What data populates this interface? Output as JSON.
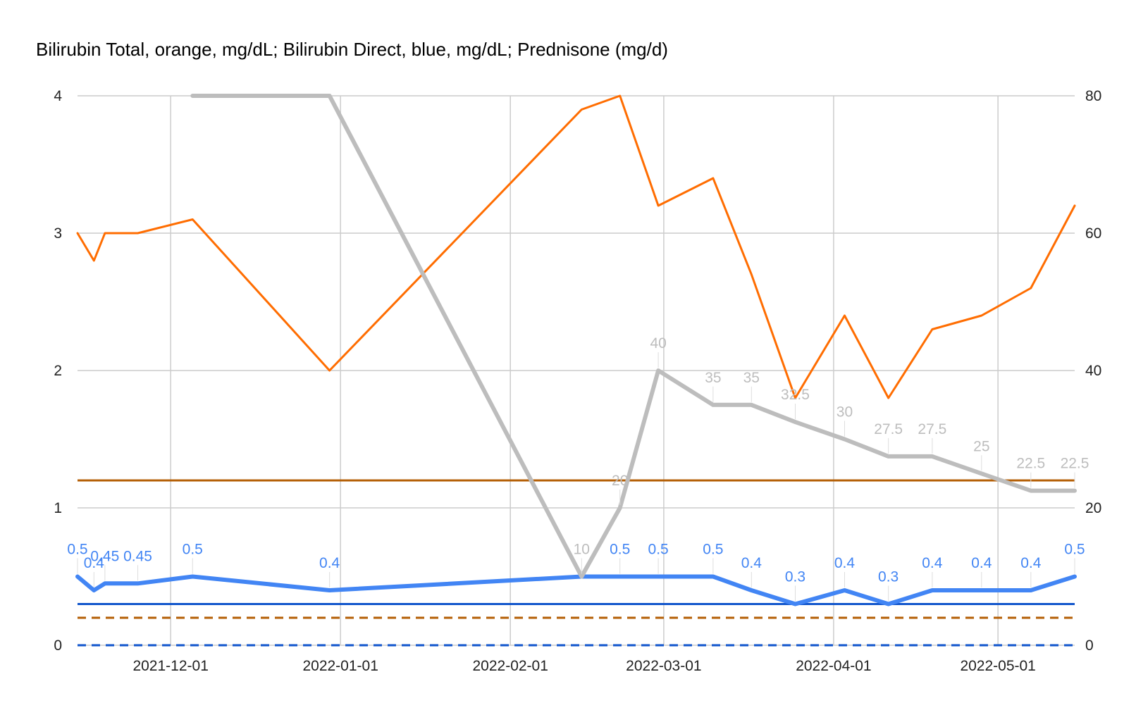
{
  "chart_data": {
    "type": "line",
    "title": "Bilirubin Total, orange, mg/dL; Bilirubin Direct, blue, mg/dL; Prednisone (mg/d)",
    "x_ticks": [
      "2021-12-01",
      "2022-01-01",
      "2022-02-01",
      "2022-03-01",
      "2022-04-01",
      "2022-05-01"
    ],
    "x_range": [
      "2021-11-14",
      "2022-05-15"
    ],
    "ylim_left": [
      0,
      4
    ],
    "yticks_left": [
      "0",
      "1",
      "2",
      "3",
      "4"
    ],
    "ylim_right": [
      0,
      80
    ],
    "yticks_right": [
      "0",
      "20",
      "40",
      "60",
      "80"
    ],
    "grid": true,
    "series": [
      {
        "key": "total",
        "color": "#ff6d01",
        "axis": "left",
        "points": [
          [
            "2021-11-14",
            3.0
          ],
          [
            "2021-11-17",
            2.8
          ],
          [
            "2021-11-19",
            3.0
          ],
          [
            "2021-11-25",
            3.0
          ],
          [
            "2021-12-05",
            3.1
          ],
          [
            "2021-12-30",
            2.0
          ],
          [
            "2022-02-14",
            3.9
          ],
          [
            "2022-02-21",
            4.0
          ],
          [
            "2022-02-28",
            3.2
          ],
          [
            "2022-03-10",
            3.4
          ],
          [
            "2022-03-17",
            2.7
          ],
          [
            "2022-03-25",
            1.8
          ],
          [
            "2022-04-03",
            2.4
          ],
          [
            "2022-04-11",
            1.8
          ],
          [
            "2022-04-19",
            2.3
          ],
          [
            "2022-04-28",
            2.4
          ],
          [
            "2022-05-07",
            2.6
          ],
          [
            "2022-05-15",
            3.2
          ]
        ]
      },
      {
        "key": "direct",
        "color": "#4285f4",
        "axis": "left",
        "points": [
          [
            "2021-11-14",
            0.5
          ],
          [
            "2021-11-17",
            0.4
          ],
          [
            "2021-11-19",
            0.45
          ],
          [
            "2021-11-25",
            0.45
          ],
          [
            "2021-12-05",
            0.5
          ],
          [
            "2021-12-30",
            0.4
          ],
          [
            "2022-02-14",
            0.5
          ],
          [
            "2022-02-21",
            0.5
          ],
          [
            "2022-02-28",
            0.5
          ],
          [
            "2022-03-10",
            0.5
          ],
          [
            "2022-03-17",
            0.4
          ],
          [
            "2022-03-25",
            0.3
          ],
          [
            "2022-04-03",
            0.4
          ],
          [
            "2022-04-11",
            0.3
          ],
          [
            "2022-04-19",
            0.4
          ],
          [
            "2022-04-28",
            0.4
          ],
          [
            "2022-05-07",
            0.4
          ],
          [
            "2022-05-15",
            0.5
          ]
        ],
        "labels": [
          "0.5",
          "0.4",
          "0.45",
          "0.45",
          "0.5",
          "0.4",
          "",
          "0.5",
          "0.5",
          "0.5",
          "0.4",
          "0.3",
          "0.4",
          "0.3",
          "0.4",
          "0.4",
          "0.4",
          "0.5"
        ]
      },
      {
        "key": "prednisone",
        "color": "#bdbdbd",
        "axis": "right",
        "points": [
          [
            "2021-12-05",
            80
          ],
          [
            "2021-12-30",
            80
          ],
          [
            "2022-02-14",
            10
          ],
          [
            "2022-02-21",
            20
          ],
          [
            "2022-02-28",
            40
          ],
          [
            "2022-03-10",
            35
          ],
          [
            "2022-03-17",
            35
          ],
          [
            "2022-03-25",
            32.5
          ],
          [
            "2022-04-03",
            30
          ],
          [
            "2022-04-11",
            27.5
          ],
          [
            "2022-04-19",
            27.5
          ],
          [
            "2022-04-28",
            25
          ],
          [
            "2022-05-07",
            22.5
          ],
          [
            "2022-05-15",
            22.5
          ]
        ],
        "labels": [
          "",
          "",
          "10",
          "20",
          "40",
          "35",
          "35",
          "32.5",
          "30",
          "27.5",
          "27.5",
          "25",
          "22.5",
          "22.5"
        ]
      }
    ],
    "reference_lines": [
      {
        "value": 1.2,
        "color": "#b45f06",
        "style": "solid",
        "axis": "left"
      },
      {
        "value": 0.3,
        "color": "#1155cc",
        "style": "solid",
        "axis": "left"
      },
      {
        "value": 0.2,
        "color": "#b45f06",
        "style": "dashed",
        "axis": "left"
      },
      {
        "value": 0.0,
        "color": "#1155cc",
        "style": "dashed",
        "axis": "left"
      }
    ]
  }
}
